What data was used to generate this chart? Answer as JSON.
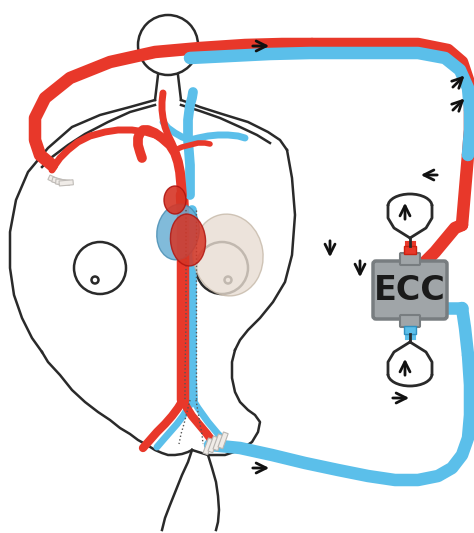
{
  "bg_color": "#ffffff",
  "red": "#e8382a",
  "blue": "#5bbfea",
  "line": "#2a2a2a",
  "gray": "#a0a5a8",
  "gray_dark": "#787d80",
  "ecc_label": "ECC",
  "arrow_color": "#111111",
  "body_lw": 1.8,
  "tube_lw": 9,
  "vessel_lw": 7,
  "figw": 4.74,
  "figh": 5.33,
  "dpi": 100
}
